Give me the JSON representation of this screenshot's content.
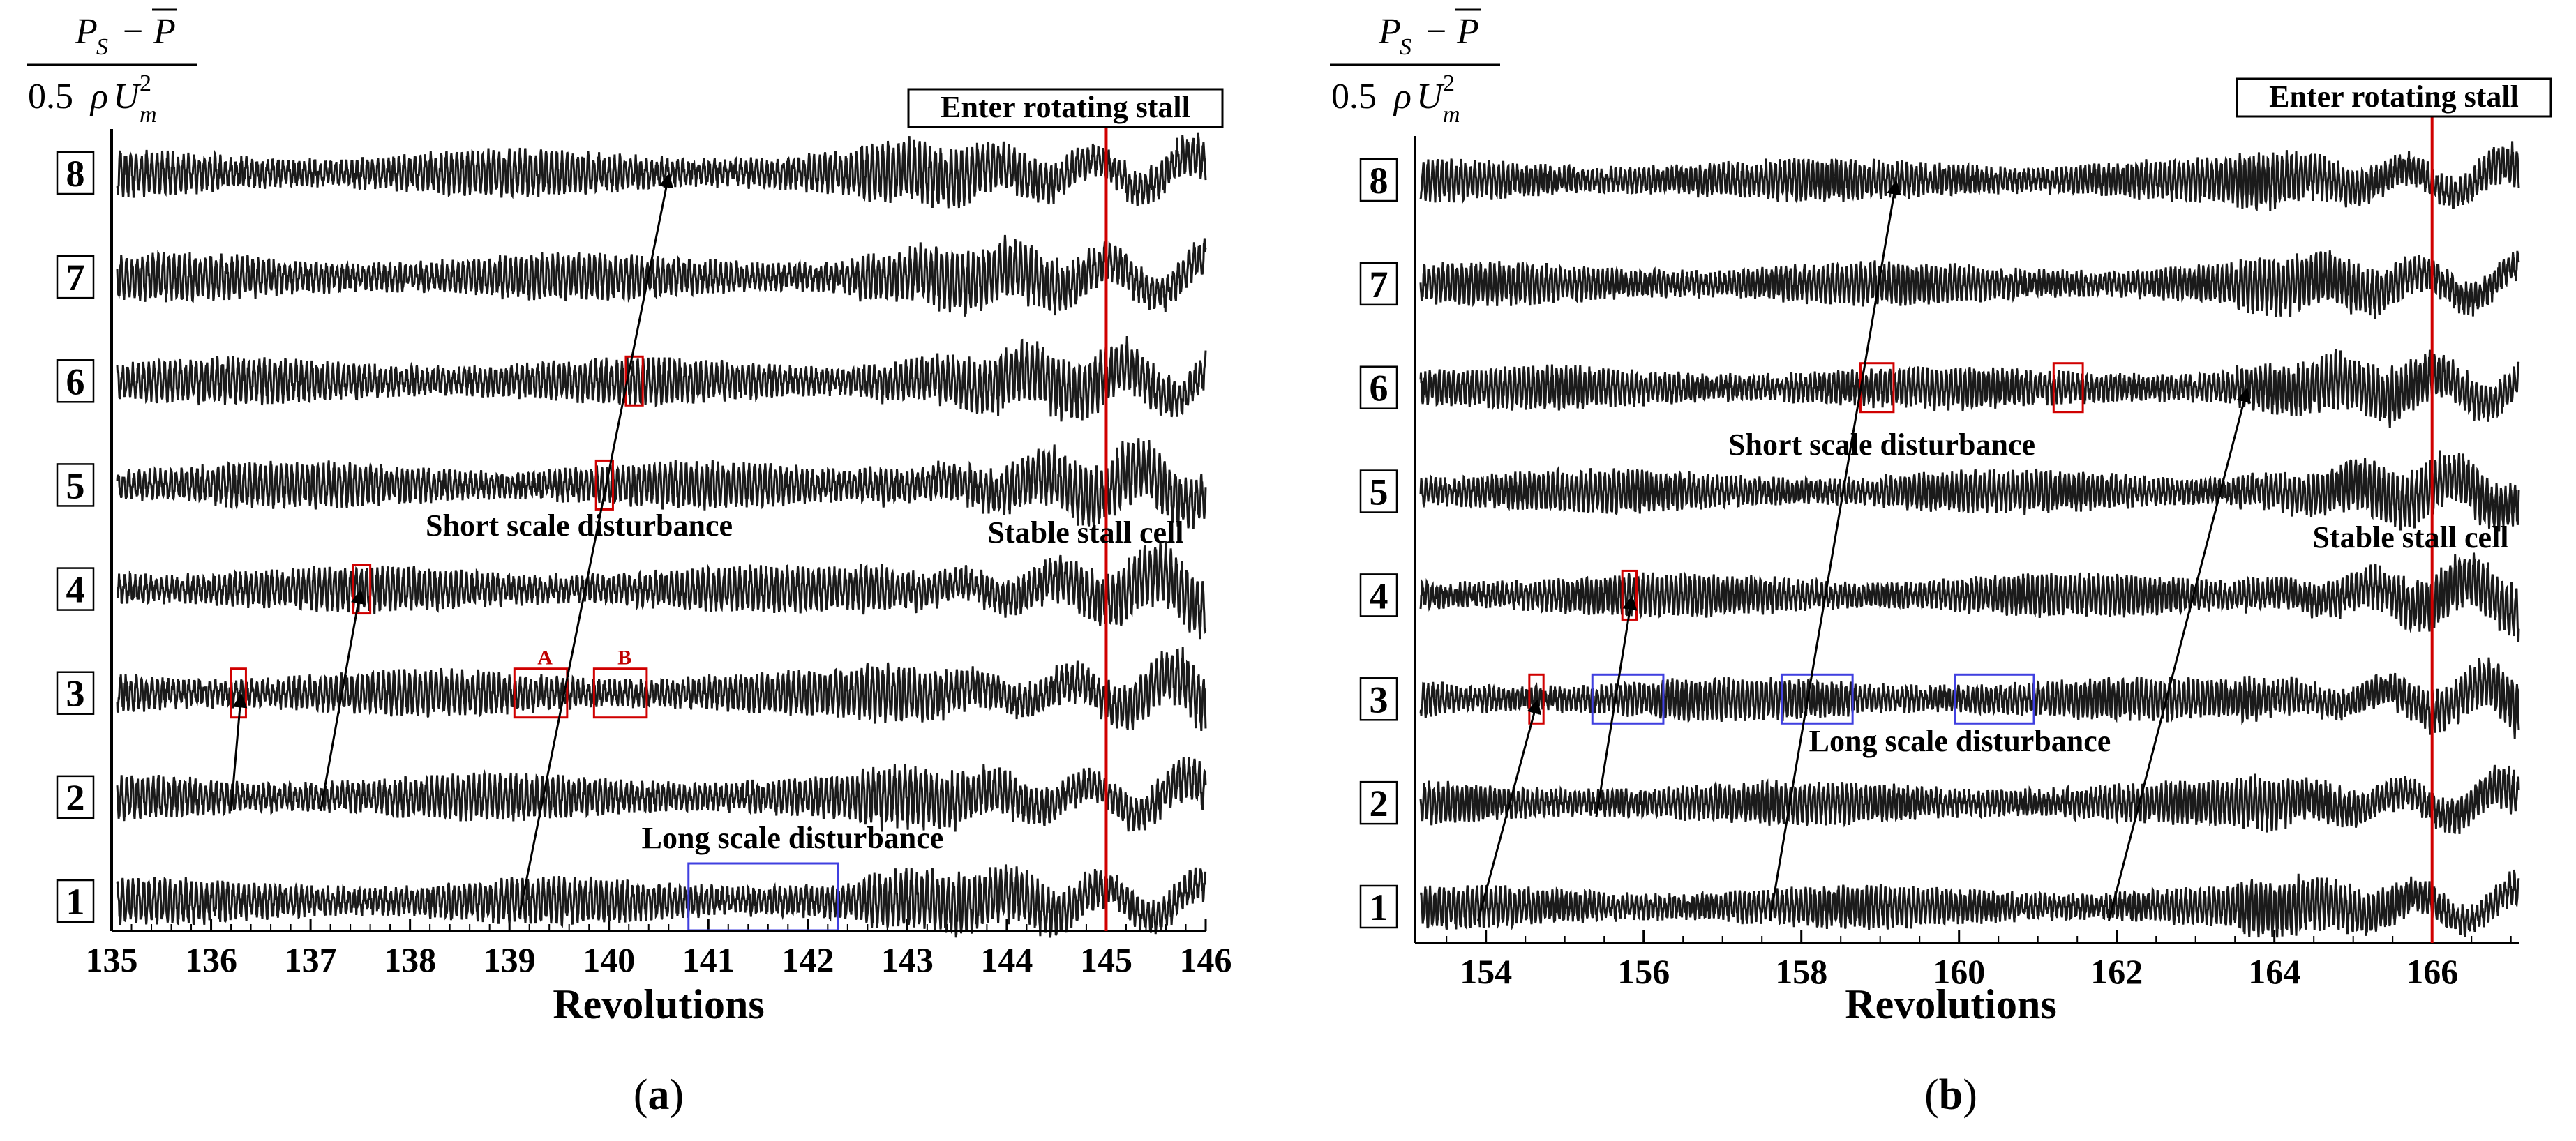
{
  "chart_data": [
    {
      "type": "line",
      "panel": "(a)",
      "caption_letter": "a",
      "xlabel": "Revolutions",
      "ylabel_parts": {
        "num_left": "P",
        "num_sub": "S",
        "num_minus": "−",
        "num_right": "P",
        "den_coef": "0.5",
        "den_rho": "ρ",
        "den_U": "U",
        "den_sub": "m",
        "den_sup": "2"
      },
      "xlim": [
        135,
        146
      ],
      "x_ticks": [
        135,
        136,
        137,
        138,
        139,
        140,
        141,
        142,
        143,
        144,
        145,
        146
      ],
      "sensors": [
        "1",
        "2",
        "3",
        "4",
        "5",
        "6",
        "7",
        "8"
      ],
      "stall_line_x": 145,
      "stall_line_color": "#d00000",
      "labels": {
        "enter_stall": "Enter rotating stall",
        "stable_stall": "Stable stall cell",
        "short_scale": "Short scale disturbance",
        "long_scale": "Long scale disturbance",
        "box_a": "A",
        "box_b": "B"
      },
      "red_boxes": [
        {
          "sensor": 3,
          "x0": 136.2,
          "x1": 136.35
        },
        {
          "sensor": 4,
          "x0": 137.43,
          "x1": 137.6
        },
        {
          "sensor": 5,
          "x0": 139.87,
          "x1": 140.04
        },
        {
          "sensor": 6,
          "x0": 140.17,
          "x1": 140.34
        },
        {
          "sensor": 3,
          "x0": 139.05,
          "x1": 139.58,
          "tag": "A"
        },
        {
          "sensor": 3,
          "x0": 139.85,
          "x1": 140.38,
          "tag": "B"
        }
      ],
      "blue_boxes": [
        {
          "sensor": 1,
          "x0": 140.8,
          "x1": 142.3
        }
      ],
      "arrows": [
        {
          "from": [
            136.2,
            2
          ],
          "to": [
            136.3,
            3
          ]
        },
        {
          "from": [
            137.1,
            2
          ],
          "to": [
            137.5,
            4
          ]
        },
        {
          "from": [
            139.1,
            1
          ],
          "to": [
            140.6,
            8
          ]
        }
      ],
      "signal_style": {
        "color": "#1a1a1a",
        "stall_onset_x": 142.5
      }
    },
    {
      "type": "line",
      "panel": "(b)",
      "caption_letter": "b",
      "xlabel": "Revolutions",
      "ylabel_parts": {
        "num_left": "P",
        "num_sub": "S",
        "num_minus": "−",
        "num_right": "P",
        "den_coef": "0.5",
        "den_rho": "ρ",
        "den_U": "U",
        "den_sub": "m",
        "den_sup": "2"
      },
      "xlim": [
        153.1,
        167.1
      ],
      "x_ticks": [
        154,
        156,
        158,
        160,
        162,
        164,
        166
      ],
      "minor_tick_step": 0.5,
      "sensors": [
        "1",
        "2",
        "3",
        "4",
        "5",
        "6",
        "7",
        "8"
      ],
      "stall_line_x": 166,
      "stall_line_color": "#d00000",
      "labels": {
        "enter_stall": "Enter rotating stall",
        "stable_stall": "Stable stall cell",
        "short_scale": "Short scale disturbance",
        "long_scale": "Long scale disturbance"
      },
      "red_boxes": [
        {
          "sensor": 3,
          "x0": 154.55,
          "x1": 154.73
        },
        {
          "sensor": 4,
          "x0": 155.73,
          "x1": 155.91
        },
        {
          "sensor": 6,
          "x0": 158.75,
          "x1": 159.17
        },
        {
          "sensor": 6,
          "x0": 161.2,
          "x1": 161.57
        }
      ],
      "blue_boxes": [
        {
          "sensor": 3,
          "x0": 155.35,
          "x1": 156.25
        },
        {
          "sensor": 3,
          "x0": 157.75,
          "x1": 158.65
        },
        {
          "sensor": 3,
          "x0": 159.95,
          "x1": 160.95
        }
      ],
      "arrows": [
        {
          "from": [
            153.9,
            1
          ],
          "to": [
            154.65,
            3
          ]
        },
        {
          "from": [
            155.4,
            2
          ],
          "to": [
            155.85,
            4
          ]
        },
        {
          "from": [
            157.6,
            1
          ],
          "to": [
            159.2,
            8
          ]
        },
        {
          "from": [
            161.9,
            1
          ],
          "to": [
            163.65,
            6
          ]
        }
      ],
      "signal_style": {
        "color": "#1a1a1a",
        "stall_onset_x": 163.5
      }
    }
  ]
}
